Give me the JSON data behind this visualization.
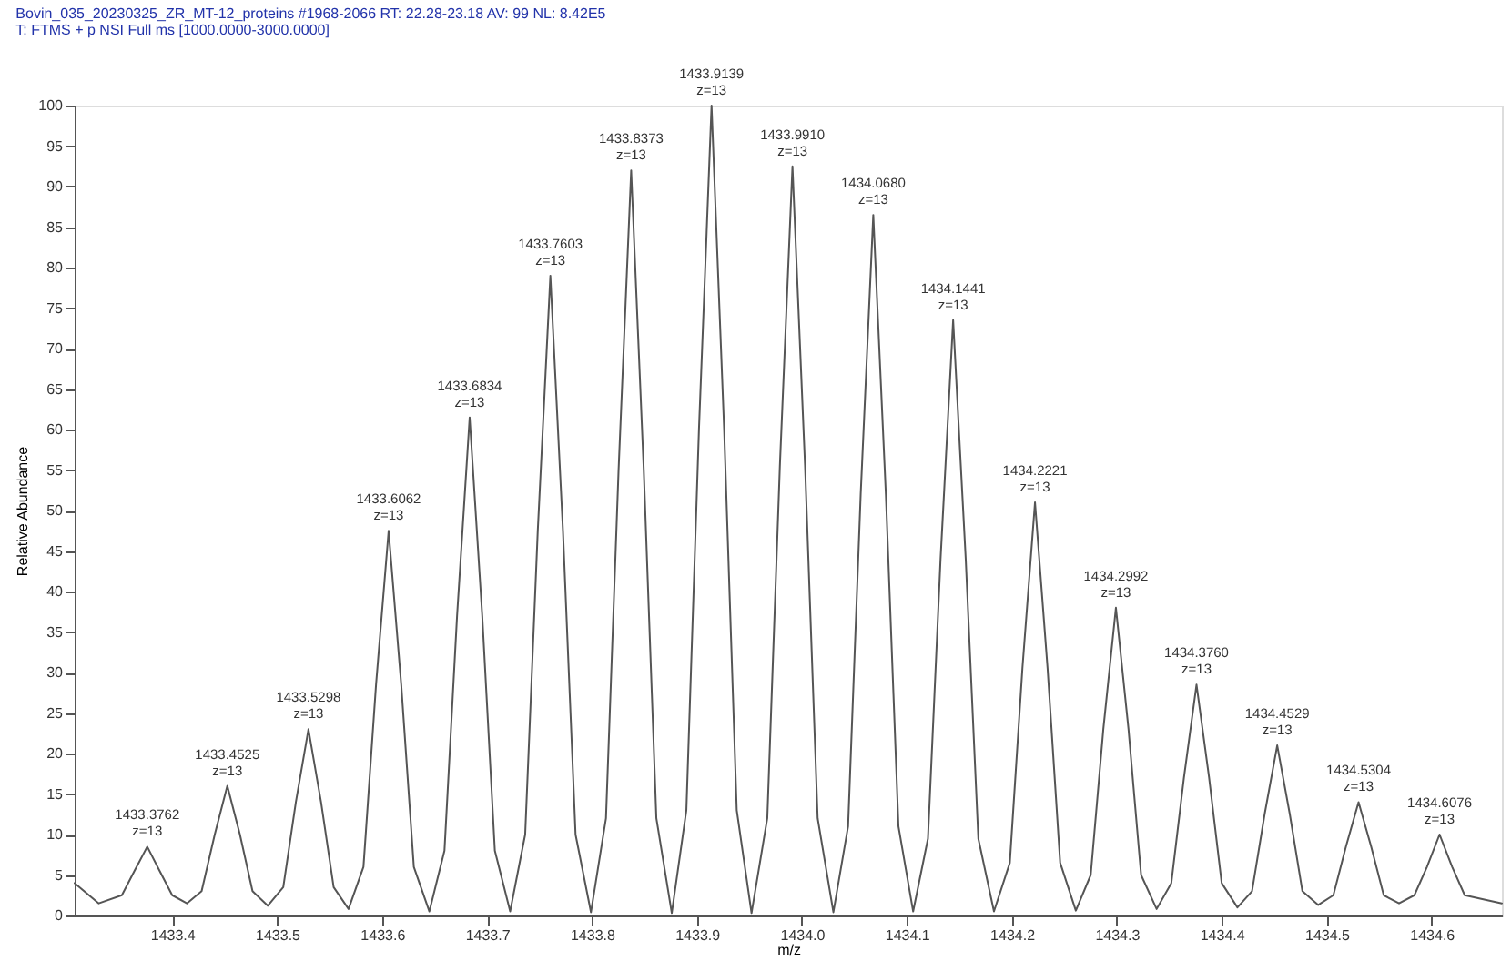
{
  "chart_data": {
    "type": "line",
    "title": "Bovin_035_20230325_ZR_MT-12_proteins #1968-2066  RT: 22.28-23.18  AV: 99  NL: 8.42E5",
    "subtitle": "T: FTMS + p NSI Full ms [1000.0000-3000.0000]",
    "xlabel": "m/z",
    "ylabel": "Relative Abundance",
    "xlim": [
      1433.307,
      1434.667
    ],
    "ylim": [
      0,
      100
    ],
    "xticks": [
      1433.4,
      1433.5,
      1433.6,
      1433.7,
      1433.8,
      1433.9,
      {
        "value": 1434.0,
        "label": "1434.0"
      },
      1434.1,
      1434.2,
      1434.3,
      1434.4,
      1434.5,
      1434.6
    ],
    "yticks": [
      0,
      5,
      10,
      15,
      20,
      25,
      30,
      35,
      40,
      45,
      50,
      55,
      60,
      65,
      70,
      75,
      80,
      85,
      90,
      95,
      100
    ],
    "grid": false,
    "marker": "none",
    "line_style": "solid",
    "series": [
      {
        "color": "#555555",
        "x": [
          1433.307,
          1433.33,
          1433.352,
          1433.364,
          1433.3762,
          1433.388,
          1433.4,
          1433.414,
          1433.428,
          1433.4405,
          1433.4525,
          1433.4645,
          1433.4765,
          1433.491,
          1433.5058,
          1433.5178,
          1433.5298,
          1433.5418,
          1433.5538,
          1433.568,
          1433.5822,
          1433.5942,
          1433.6062,
          1433.6182,
          1433.6302,
          1433.645,
          1433.6594,
          1433.6714,
          1433.6834,
          1433.6954,
          1433.7074,
          1433.722,
          1433.7363,
          1433.7483,
          1433.7603,
          1433.7723,
          1433.7843,
          1433.799,
          1433.8133,
          1433.8253,
          1433.8373,
          1433.8493,
          1433.8613,
          1433.876,
          1433.8899,
          1433.9019,
          1433.9139,
          1433.9259,
          1433.9379,
          1433.952,
          1433.967,
          1433.979,
          1433.991,
          1434.003,
          1434.015,
          1434.03,
          1434.044,
          1434.056,
          1434.068,
          1434.08,
          1434.092,
          1434.106,
          1434.1201,
          1434.1321,
          1434.1441,
          1434.1561,
          1434.1681,
          1434.183,
          1434.1981,
          1434.2101,
          1434.2221,
          1434.2341,
          1434.2461,
          1434.261,
          1434.2752,
          1434.2872,
          1434.2992,
          1434.3112,
          1434.3232,
          1434.338,
          1434.352,
          1434.364,
          1434.376,
          1434.388,
          1434.4,
          1434.415,
          1434.4289,
          1434.4409,
          1434.4529,
          1434.4649,
          1434.4769,
          1434.492,
          1434.5064,
          1434.5184,
          1434.5304,
          1434.5424,
          1434.5544,
          1434.569,
          1434.5836,
          1434.5956,
          1434.6076,
          1434.6196,
          1434.6316,
          1434.667
        ],
        "values": [
          4,
          1.5,
          2.5,
          5.5,
          8.5,
          5.5,
          2.5,
          1.5,
          3,
          10,
          16,
          10,
          3,
          1.2,
          3.5,
          14,
          23,
          14,
          3.5,
          0.8,
          6,
          28.5,
          47.5,
          28.5,
          6,
          0.5,
          8,
          37,
          61.5,
          37,
          8,
          0.5,
          10,
          47.5,
          79,
          47.5,
          10,
          0.4,
          12,
          55,
          92,
          55,
          12,
          0.3,
          13,
          60,
          100,
          60,
          13,
          0.3,
          12,
          55.5,
          92.5,
          55.5,
          12,
          0.4,
          11,
          52,
          86.5,
          52,
          11,
          0.5,
          9.5,
          44,
          73.5,
          44,
          9.5,
          0.5,
          6.5,
          30.5,
          51,
          30.5,
          6.5,
          0.6,
          5,
          23,
          38,
          23,
          5,
          0.8,
          4,
          17,
          28.5,
          17,
          4,
          1,
          3,
          12.5,
          21,
          12.5,
          3,
          1.3,
          2.5,
          8.5,
          14,
          8.5,
          2.5,
          1.5,
          2.5,
          6,
          10,
          6,
          2.5,
          1.5
        ]
      }
    ],
    "annotations": [
      {
        "text": "1433.3762\nz=13",
        "x": 1433.3762,
        "y": 8.5
      },
      {
        "text": "1433.4525\nz=13",
        "x": 1433.4525,
        "y": 16
      },
      {
        "text": "1433.5298\nz=13",
        "x": 1433.5298,
        "y": 23
      },
      {
        "text": "1433.6062\nz=13",
        "x": 1433.6062,
        "y": 47.5
      },
      {
        "text": "1433.6834\nz=13",
        "x": 1433.6834,
        "y": 61.5
      },
      {
        "text": "1433.7603\nz=13",
        "x": 1433.7603,
        "y": 79
      },
      {
        "text": "1433.8373\nz=13",
        "x": 1433.8373,
        "y": 92
      },
      {
        "text": "1433.9139\nz=13",
        "x": 1433.9139,
        "y": 100
      },
      {
        "text": "1433.9910\nz=13",
        "x": 1433.991,
        "y": 92.5
      },
      {
        "text": "1434.0680\nz=13",
        "x": 1434.068,
        "y": 86.5
      },
      {
        "text": "1434.1441\nz=13",
        "x": 1434.1441,
        "y": 73.5
      },
      {
        "text": "1434.2221\nz=13",
        "x": 1434.2221,
        "y": 51
      },
      {
        "text": "1434.2992\nz=13",
        "x": 1434.2992,
        "y": 38
      },
      {
        "text": "1434.3760\nz=13",
        "x": 1434.376,
        "y": 28.5
      },
      {
        "text": "1434.4529\nz=13",
        "x": 1434.4529,
        "y": 21
      },
      {
        "text": "1434.5304\nz=13",
        "x": 1434.5304,
        "y": 14
      },
      {
        "text": "1434.6076\nz=13",
        "x": 1434.6076,
        "y": 10
      }
    ]
  }
}
